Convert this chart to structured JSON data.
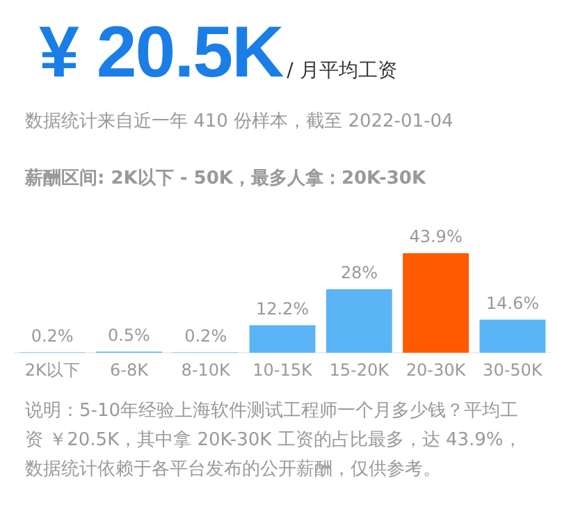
{
  "chart_data": {
    "type": "bar",
    "title": "¥ 20.5K",
    "subtitle": "/ 月平均工资",
    "annotations": [
      "数据统计来自近一年 410 份样本，截至 2022-01-04",
      "薪酬区间: 2K以下 - 50K，最多人拿：20K-30K",
      "说明：5-10年经验上海软件测试工程师一个月多少钱？平均工资 ￥20.5K，其中拿 20K-30K 工资的占比最多，达 43.9%，数据统计依赖于各平台发布的公开薪酬，仅供参考。"
    ],
    "categories": [
      "2K以下",
      "6-8K",
      "8-10K",
      "10-15K",
      "15-20K",
      "20-30K",
      "30-50K"
    ],
    "values": [
      0.2,
      0.5,
      0.2,
      12.2,
      28,
      43.9,
      14.6
    ],
    "value_labels": [
      "0.2%",
      "0.5%",
      "0.2%",
      "12.2%",
      "28%",
      "43.9%",
      "14.6%"
    ],
    "colors": [
      "#5ab4f5",
      "#5ab4f5",
      "#5ab4f5",
      "#5ab4f5",
      "#5ab4f5",
      "#ff5a00",
      "#5ab4f5"
    ],
    "grid": false,
    "legend": false
  }
}
